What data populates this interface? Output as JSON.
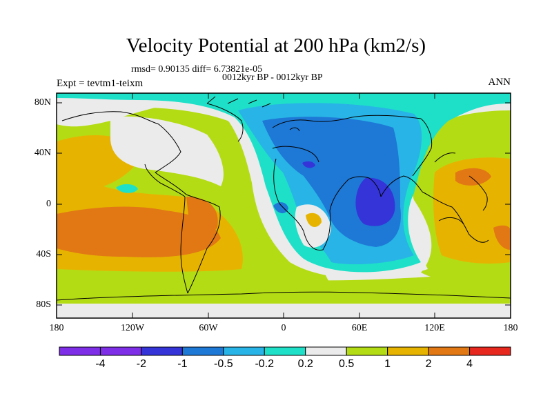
{
  "title": "Velocity Potential at 200 hPa (km2/s)",
  "stats": "rmsd= 0.90135 diff= 6.73821e-05",
  "period": "0012kyr BP - 0012kyr BP",
  "experiment": "Expt = tevtm1-teixm",
  "season": "ANN",
  "y_ticks": [
    "80N",
    "40N",
    "0",
    "40S",
    "80S"
  ],
  "x_ticks": [
    "180",
    "120W",
    "60W",
    "0",
    "60E",
    "120E",
    "180"
  ],
  "colorbar": {
    "labels": [
      "-4",
      "-2",
      "-1",
      "-0.5",
      "-0.2",
      "0.2",
      "0.5",
      "1",
      "2",
      "4"
    ],
    "colors": [
      "#7d2ee6",
      "#3434d8",
      "#1e78d6",
      "#28b4e6",
      "#1ee0c8",
      "#ebebeb",
      "#b4dc14",
      "#e6b400",
      "#e17814",
      "#e6281e"
    ]
  },
  "palette": {
    "ocean_white": "#ebebeb",
    "lime": "#b4dc14",
    "gold": "#e6b400",
    "orange": "#e17814",
    "teal": "#1ee0c8",
    "cyan": "#28b4e6",
    "sky": "#1e78d6",
    "blue": "#3434d8"
  }
}
